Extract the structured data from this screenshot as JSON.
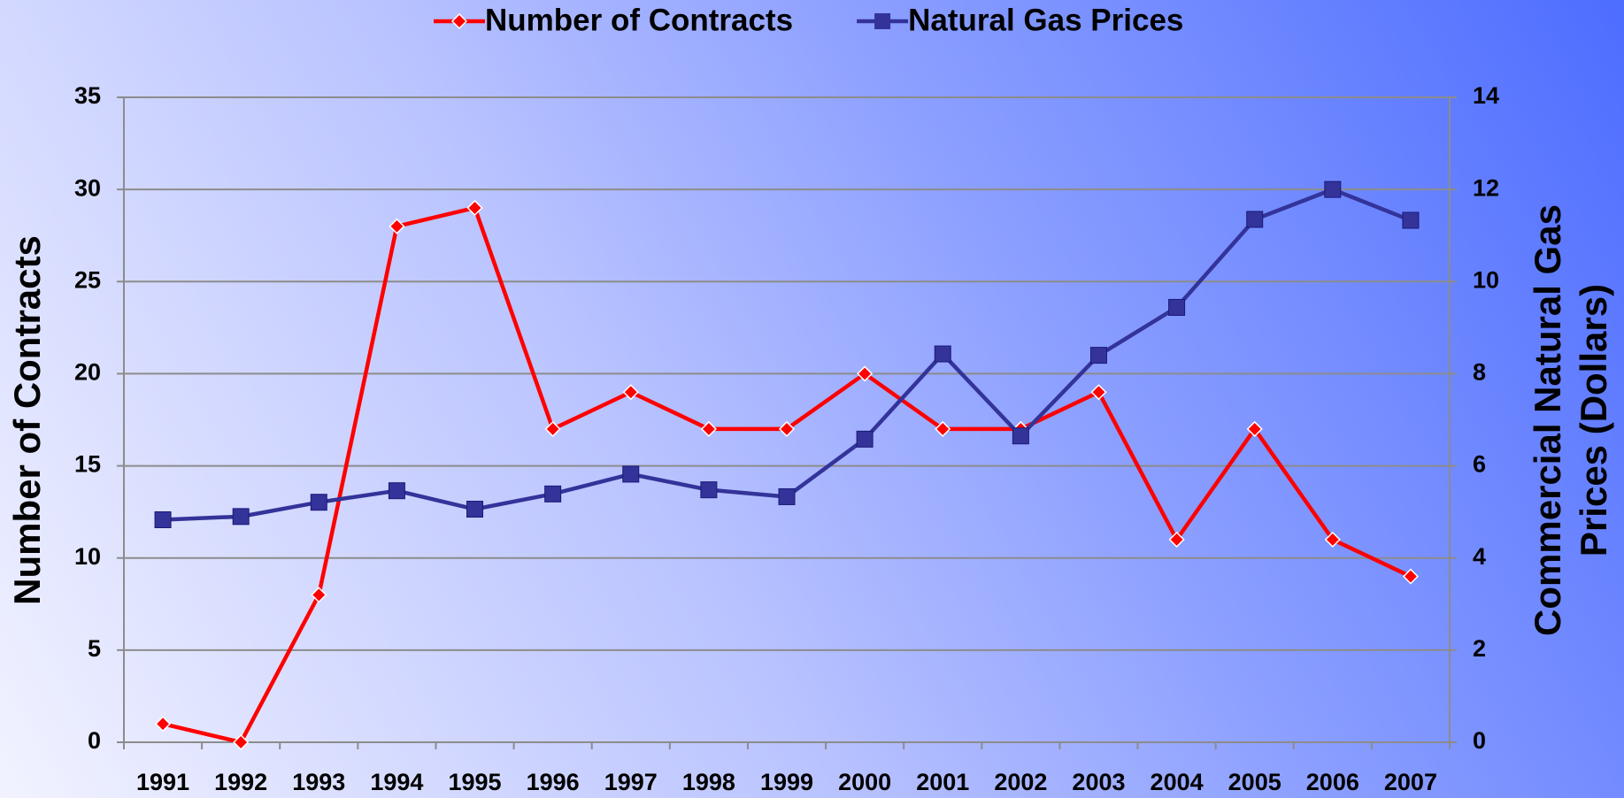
{
  "chart_data": {
    "type": "line",
    "categories": [
      "1991",
      "1992",
      "1993",
      "1994",
      "1995",
      "1996",
      "1997",
      "1998",
      "1999",
      "2000",
      "2001",
      "2002",
      "2003",
      "2004",
      "2005",
      "2006",
      "2007"
    ],
    "series": [
      {
        "name": "Number of Contracts",
        "color": "#ff0000",
        "values": [
          1,
          0,
          8,
          28,
          29,
          17,
          19,
          17,
          17,
          20,
          17,
          17,
          19,
          11,
          17,
          11,
          9
        ]
      },
      {
        "name": "Natural Gas Prices",
        "color": "#333399",
        "axis": "y2",
        "values": [
          4.83,
          4.9,
          5.21,
          5.46,
          5.06,
          5.39,
          5.82,
          5.48,
          5.33,
          6.58,
          8.43,
          6.65,
          8.4,
          9.44,
          11.35,
          12.0,
          11.33
        ]
      }
    ],
    "ylabel": "Number of Contracts",
    "y2label": [
      "Commercial Natural Gas",
      "Prices (Dollars)"
    ],
    "ylim": [
      0,
      35
    ],
    "yticks": [
      0,
      5,
      10,
      15,
      20,
      25,
      30,
      35
    ],
    "y2lim": [
      0,
      14
    ],
    "y2ticks": [
      0,
      2,
      4,
      6,
      8,
      10,
      12,
      14
    ],
    "grid": true,
    "legend": "top"
  }
}
